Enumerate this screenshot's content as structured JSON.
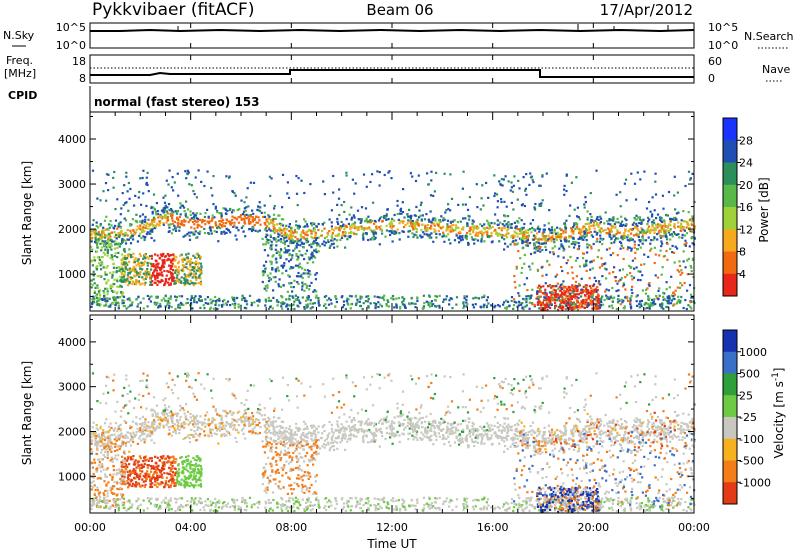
{
  "header": {
    "station": "Pykkvibaer (fitACF)",
    "beam": "Beam 06",
    "date": "17/Apr/2012"
  },
  "noise_panel": {
    "label": "N.Sky",
    "right_label": "N.Search",
    "left_ticks": [
      "10^5",
      "10^0"
    ],
    "right_ticks": [
      "10^5",
      "10^0"
    ]
  },
  "freq_panel": {
    "label_line1": "Freq.",
    "label_line2": "[MHz]",
    "right_label": "Nave",
    "left_ticks": [
      "18",
      "8"
    ],
    "right_ticks": [
      "60",
      "0"
    ]
  },
  "cpid_panel": {
    "label": "CPID",
    "text": "normal (fast stereo) 153"
  },
  "chart_data": [
    {
      "type": "heatmap",
      "name_ref": "power",
      "ylabel": "Slant Range [km]",
      "ylim": [
        180,
        4600
      ],
      "y_ticks": [
        "1000",
        "2000",
        "3000",
        "4000"
      ],
      "colorbar_label": "Power [dB]",
      "colorbar_ticks": [
        "4",
        "8",
        "12",
        "16",
        "20",
        "24",
        "28"
      ],
      "colorbar_colors": [
        "#1a33ff",
        "#1f4fb5",
        "#2b8f5c",
        "#58b848",
        "#9fd23a",
        "#f7a91e",
        "#f26a10",
        "#e8261a"
      ]
    },
    {
      "type": "heatmap",
      "name_ref": "velocity",
      "ylabel": "Slant Range [km]",
      "ylim": [
        180,
        4600
      ],
      "y_ticks": [
        "1000",
        "2000",
        "3000",
        "4000"
      ],
      "xlabel": "Time UT",
      "x_ticks": [
        "00:00",
        "04:00",
        "08:00",
        "12:00",
        "16:00",
        "20:00",
        "00:00"
      ],
      "colorbar_label": "Velocity [m s^-1]",
      "colorbar_ticks": [
        "1000",
        "500",
        "25",
        "-25",
        "-100",
        "-500",
        "-1000"
      ],
      "colorbar_colors": [
        "#1533b0",
        "#3b70c9",
        "#2f9f3a",
        "#6ccb42",
        "#c8c8c0",
        "#f6b21e",
        "#f47d17",
        "#e23b16"
      ]
    }
  ]
}
